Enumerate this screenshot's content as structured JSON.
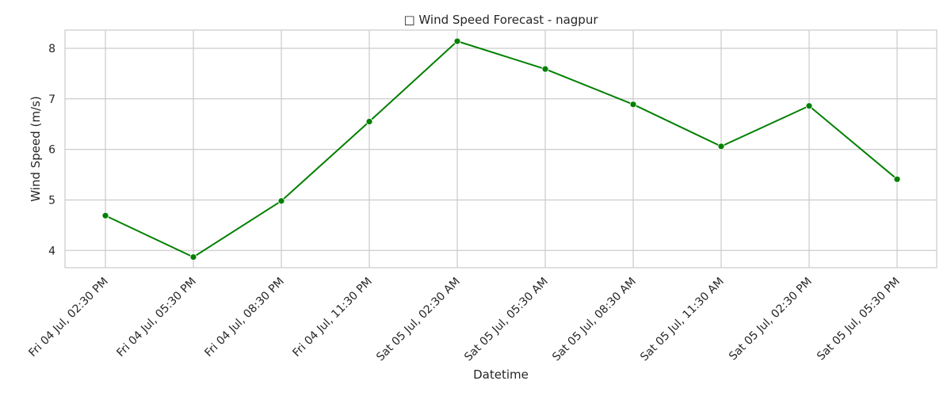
{
  "chart_data": {
    "type": "line",
    "title": "□ Wind Speed Forecast - nagpur",
    "xlabel": "Datetime",
    "ylabel": "Wind Speed (m/s)",
    "categories": [
      "Fri 04 Jul, 02:30 PM",
      "Fri 04 Jul, 05:30 PM",
      "Fri 04 Jul, 08:30 PM",
      "Fri 04 Jul, 11:30 PM",
      "Sat 05 Jul, 02:30 AM",
      "Sat 05 Jul, 05:30 AM",
      "Sat 05 Jul, 08:30 AM",
      "Sat 05 Jul, 11:30 AM",
      "Sat 05 Jul, 02:30 PM",
      "Sat 05 Jul, 05:30 PM"
    ],
    "series": [
      {
        "values": [
          4.69,
          3.87,
          4.98,
          6.55,
          8.14,
          7.59,
          6.89,
          6.06,
          6.86,
          5.41
        ],
        "color": "#008000",
        "marker": "circle"
      }
    ],
    "yticks": [
      4,
      5,
      6,
      7,
      8
    ],
    "ylim": [
      3.66,
      8.36
    ],
    "grid": true,
    "style": {
      "background": "#ffffff",
      "grid_color": "#cccccc",
      "spine_color": "#cccccc",
      "text_color": "#262626"
    }
  }
}
